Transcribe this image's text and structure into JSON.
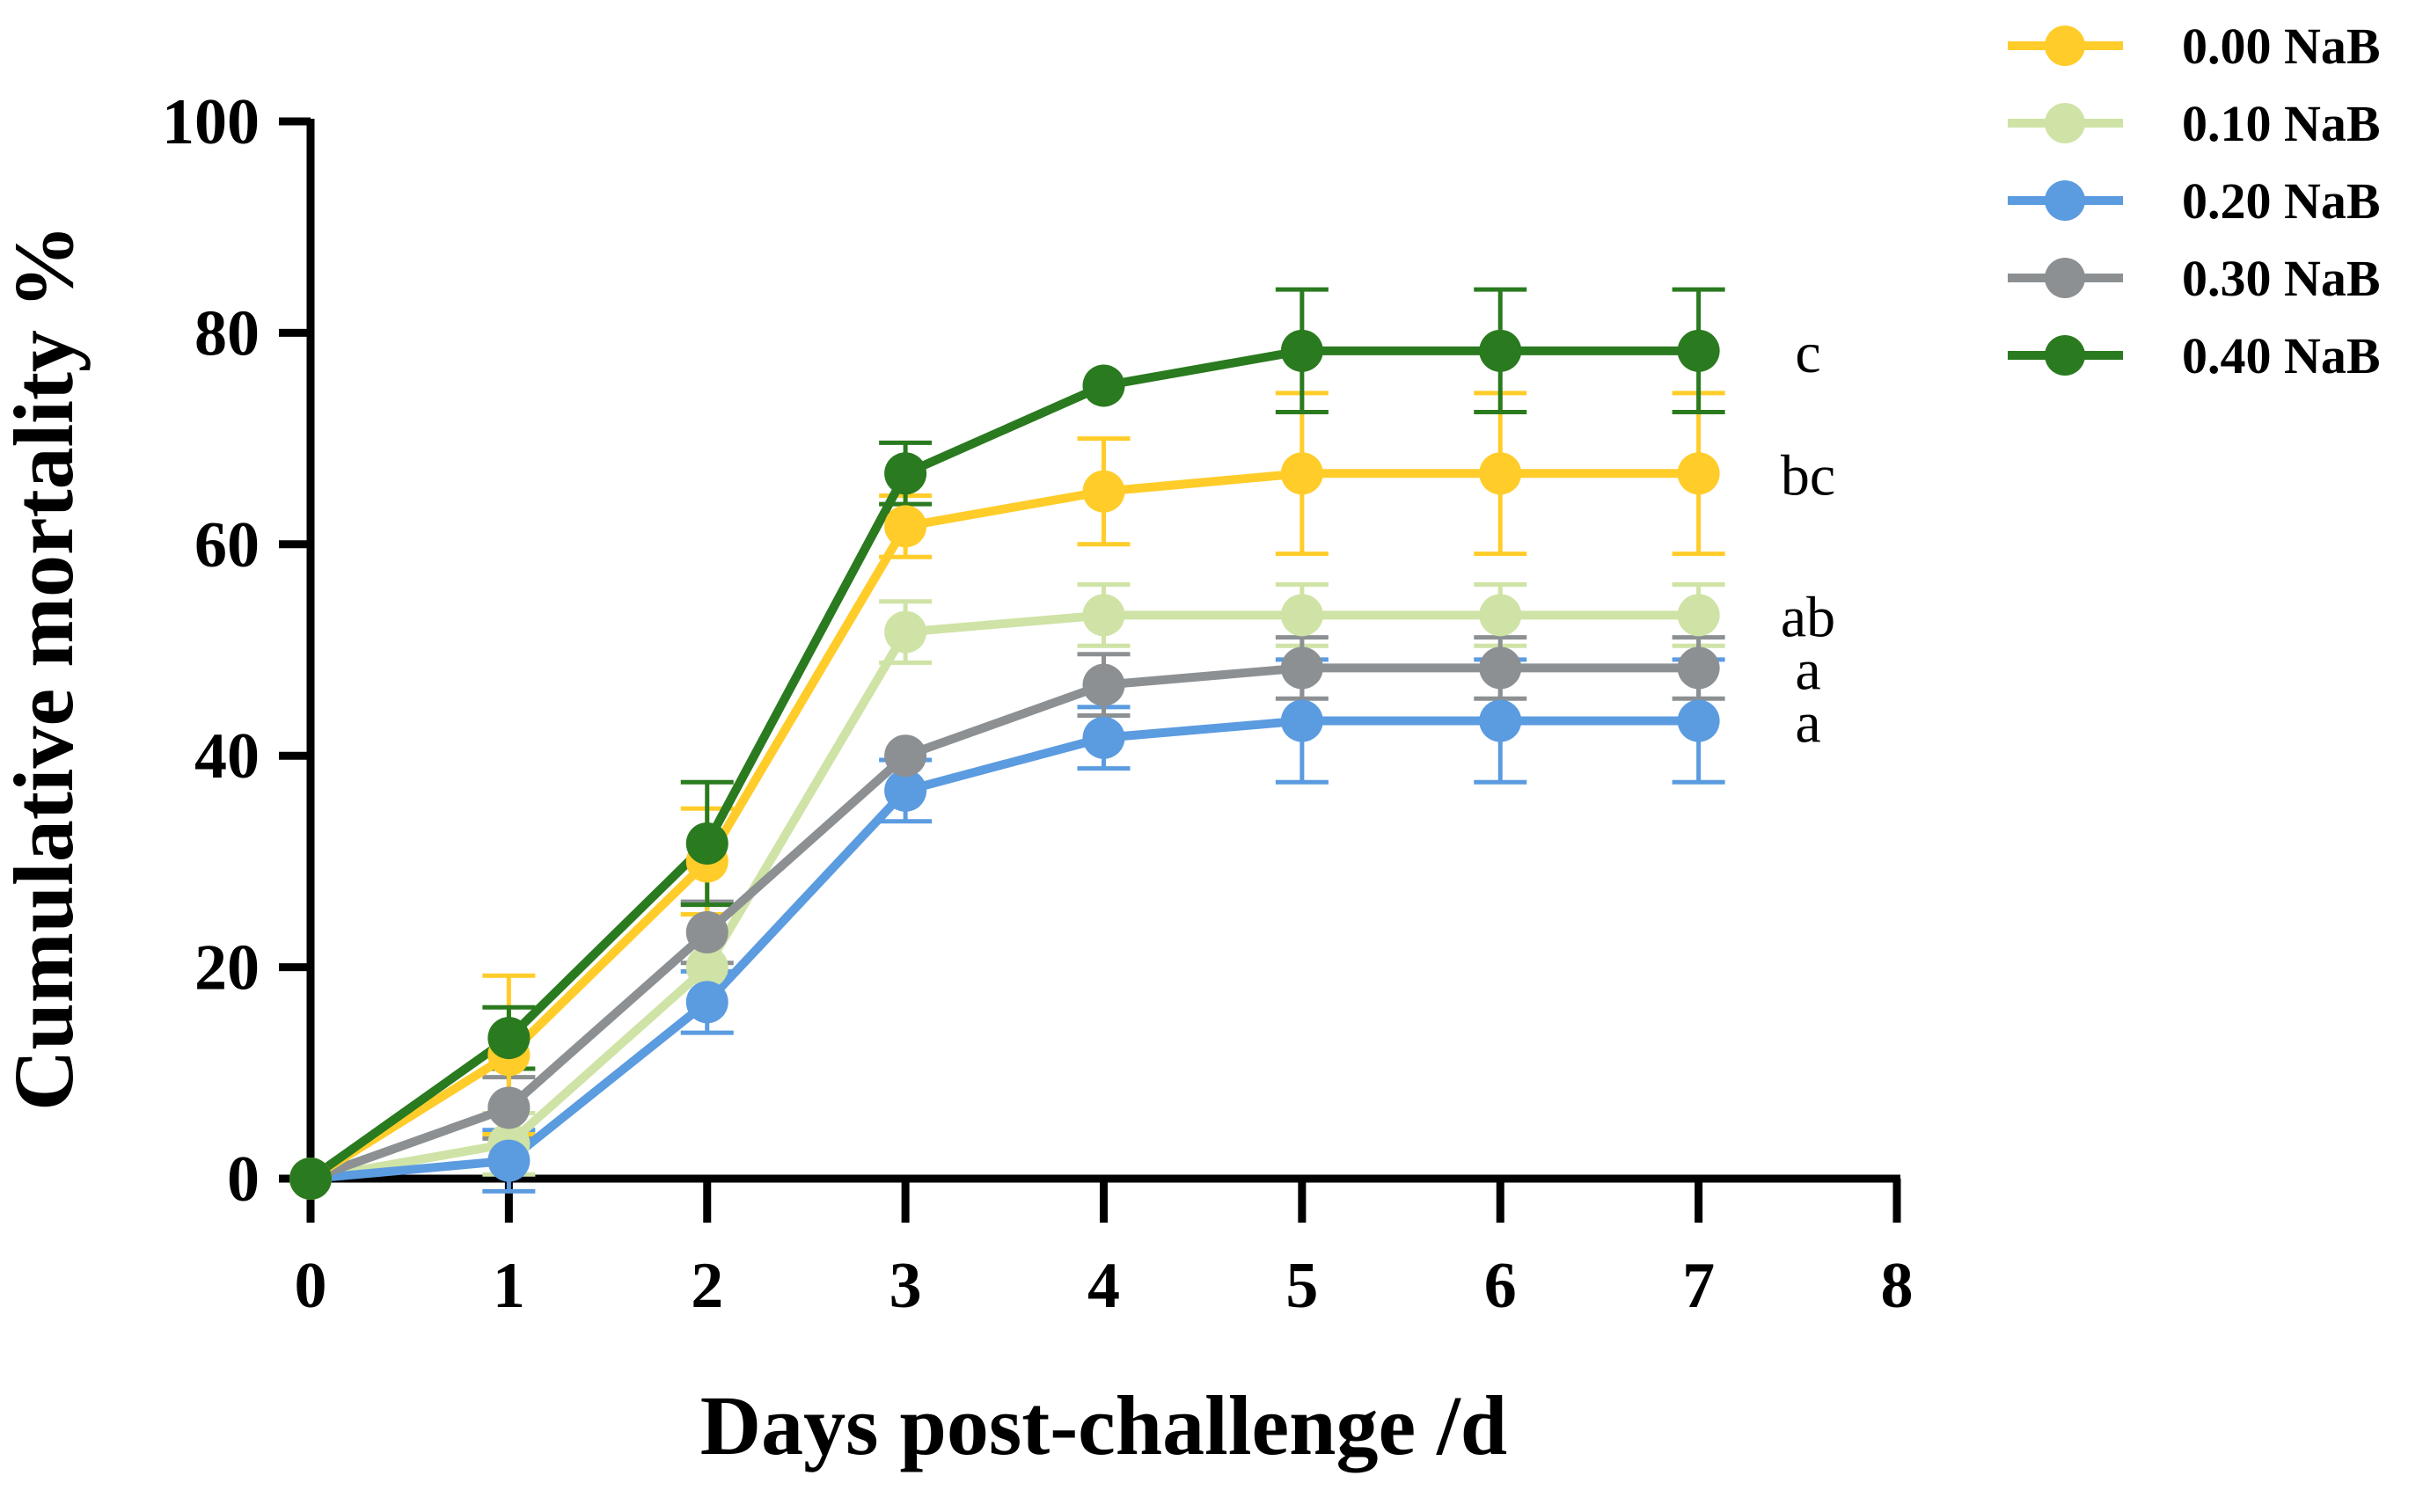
{
  "chart_data": {
    "type": "line",
    "title": "",
    "xlabel": "Days post-challenge /d",
    "ylabel": "Cumulative mortality %",
    "xlim": [
      0,
      8
    ],
    "ylim": [
      0,
      100
    ],
    "x_ticks": [
      0,
      1,
      2,
      3,
      4,
      5,
      6,
      7,
      8
    ],
    "y_ticks": [
      0,
      20,
      40,
      60,
      80,
      100
    ],
    "grid": false,
    "legend_position": "top-right",
    "x": [
      0,
      1,
      2,
      3,
      4,
      5,
      6,
      7
    ],
    "series": [
      {
        "name": "0.00 NaB",
        "color": "#FFCC29",
        "values": [
          0,
          11.7,
          30,
          61.7,
          65,
          66.7,
          66.7,
          66.7
        ],
        "errors": [
          0,
          7.5,
          5,
          2.9,
          5,
          7.6,
          7.6,
          7.6
        ],
        "significance": "bc"
      },
      {
        "name": "0.10 NaB",
        "color": "#CFE3A6",
        "values": [
          0,
          3.3,
          20,
          51.7,
          53.3,
          53.3,
          53.3,
          53.3
        ],
        "errors": [
          0,
          2.9,
          0,
          2.9,
          2.9,
          2.9,
          2.9,
          2.9
        ],
        "significance": "ab"
      },
      {
        "name": "0.20 NaB",
        "color": "#5B9BE0",
        "values": [
          0,
          1.7,
          16.7,
          36.7,
          41.7,
          43.3,
          43.3,
          43.3
        ],
        "errors": [
          0,
          2.9,
          2.9,
          2.9,
          2.9,
          5.8,
          5.8,
          5.8
        ],
        "significance": "a"
      },
      {
        "name": "0.30 NaB",
        "color": "#8C9093",
        "values": [
          0,
          6.7,
          23.3,
          40,
          46.7,
          48.3,
          48.3,
          48.3
        ],
        "errors": [
          0,
          2.9,
          2.9,
          0,
          2.9,
          2.9,
          2.9,
          2.9
        ],
        "significance": "a"
      },
      {
        "name": "0.40 NaB",
        "color": "#2A7A1F",
        "values": [
          0,
          13.3,
          31.7,
          66.7,
          75,
          78.3,
          78.3,
          78.3
        ],
        "errors": [
          0,
          2.9,
          5.8,
          2.9,
          0,
          5.8,
          5.8,
          5.8
        ],
        "significance": "c"
      }
    ],
    "significance_labels": [
      "c",
      "bc",
      "ab",
      "a",
      "a"
    ]
  }
}
